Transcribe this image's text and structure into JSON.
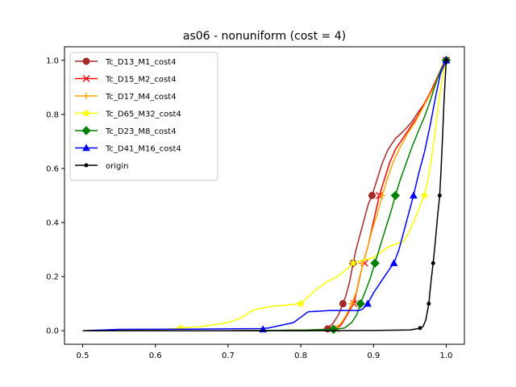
{
  "chart_data": {
    "type": "line",
    "title": "as06 - nonuniform (cost = 4)",
    "xlabel": "",
    "ylabel": "",
    "xlim": [
      0.475,
      1.025
    ],
    "ylim": [
      -0.05,
      1.05
    ],
    "xticks": [
      0.5,
      0.6,
      0.7,
      0.8,
      0.9,
      1.0
    ],
    "xtick_labels": [
      "0.5",
      "0.6",
      "0.7",
      "0.8",
      "0.9",
      "1.0"
    ],
    "yticks": [
      0.0,
      0.2,
      0.4,
      0.6,
      0.8,
      1.0
    ],
    "ytick_labels": [
      "0.0",
      "0.2",
      "0.4",
      "0.6",
      "0.8",
      "1.0"
    ],
    "grid": false,
    "legend_position": "upper-left",
    "series": [
      {
        "name": "Tc_D13_M1_cost4",
        "color": "#a52a2a",
        "marker": "circle",
        "points": [
          [
            0.5,
            0.0
          ],
          [
            0.7,
            0.0
          ],
          [
            0.8,
            0.002
          ],
          [
            0.83,
            0.005
          ],
          [
            0.837,
            0.007
          ],
          [
            0.845,
            0.03
          ],
          [
            0.852,
            0.06
          ],
          [
            0.858,
            0.1
          ],
          [
            0.862,
            0.13
          ],
          [
            0.867,
            0.18
          ],
          [
            0.872,
            0.25
          ],
          [
            0.876,
            0.3
          ],
          [
            0.882,
            0.36
          ],
          [
            0.888,
            0.42
          ],
          [
            0.893,
            0.47
          ],
          [
            0.898,
            0.5
          ],
          [
            0.905,
            0.56
          ],
          [
            0.912,
            0.62
          ],
          [
            0.92,
            0.67
          ],
          [
            0.93,
            0.71
          ],
          [
            0.942,
            0.74
          ],
          [
            0.952,
            0.77
          ],
          [
            0.962,
            0.81
          ],
          [
            0.97,
            0.84
          ],
          [
            0.978,
            0.88
          ],
          [
            0.985,
            0.92
          ],
          [
            0.99,
            0.95
          ],
          [
            0.995,
            0.98
          ],
          [
            1.0,
            1.0
          ]
        ],
        "markers": [
          [
            0.837,
            0.007
          ],
          [
            0.858,
            0.1
          ],
          [
            0.872,
            0.25
          ],
          [
            0.898,
            0.5
          ],
          [
            1.0,
            1.0
          ]
        ]
      },
      {
        "name": "Tc_D15_M2_cost4",
        "color": "#ff0000",
        "marker": "x",
        "points": [
          [
            0.5,
            0.0
          ],
          [
            0.7,
            0.0
          ],
          [
            0.8,
            0.002
          ],
          [
            0.84,
            0.004
          ],
          [
            0.848,
            0.008
          ],
          [
            0.855,
            0.02
          ],
          [
            0.862,
            0.05
          ],
          [
            0.868,
            0.08
          ],
          [
            0.873,
            0.1
          ],
          [
            0.878,
            0.16
          ],
          [
            0.883,
            0.22
          ],
          [
            0.888,
            0.27
          ],
          [
            0.893,
            0.32
          ],
          [
            0.898,
            0.38
          ],
          [
            0.903,
            0.44
          ],
          [
            0.908,
            0.5
          ],
          [
            0.915,
            0.56
          ],
          [
            0.922,
            0.62
          ],
          [
            0.93,
            0.67
          ],
          [
            0.94,
            0.71
          ],
          [
            0.95,
            0.75
          ],
          [
            0.96,
            0.79
          ],
          [
            0.97,
            0.84
          ],
          [
            0.978,
            0.88
          ],
          [
            0.985,
            0.92
          ],
          [
            0.99,
            0.95
          ],
          [
            0.995,
            0.98
          ],
          [
            1.0,
            1.0
          ]
        ],
        "markers": [
          [
            0.848,
            0.008
          ],
          [
            0.873,
            0.1
          ],
          [
            0.888,
            0.25
          ],
          [
            0.908,
            0.5
          ],
          [
            1.0,
            1.0
          ]
        ]
      },
      {
        "name": "Tc_D17_M4_cost4",
        "color": "#ffa500",
        "marker": "plus",
        "points": [
          [
            0.5,
            0.0
          ],
          [
            0.7,
            0.0
          ],
          [
            0.8,
            0.002
          ],
          [
            0.84,
            0.004
          ],
          [
            0.848,
            0.01
          ],
          [
            0.856,
            0.03
          ],
          [
            0.863,
            0.06
          ],
          [
            0.87,
            0.1
          ],
          [
            0.876,
            0.14
          ],
          [
            0.881,
            0.2
          ],
          [
            0.887,
            0.26
          ],
          [
            0.893,
            0.32
          ],
          [
            0.899,
            0.38
          ],
          [
            0.905,
            0.43
          ],
          [
            0.912,
            0.5
          ],
          [
            0.92,
            0.57
          ],
          [
            0.928,
            0.63
          ],
          [
            0.937,
            0.68
          ],
          [
            0.947,
            0.73
          ],
          [
            0.957,
            0.77
          ],
          [
            0.967,
            0.82
          ],
          [
            0.975,
            0.86
          ],
          [
            0.983,
            0.9
          ],
          [
            0.989,
            0.94
          ],
          [
            0.994,
            0.97
          ],
          [
            1.0,
            1.0
          ]
        ],
        "markers": [
          [
            0.848,
            0.01
          ],
          [
            0.87,
            0.1
          ],
          [
            0.883,
            0.25
          ],
          [
            0.912,
            0.5
          ],
          [
            1.0,
            1.0
          ]
        ]
      },
      {
        "name": "Tc_D65_M32_cost4",
        "color": "#ffff00",
        "marker": "star",
        "points": [
          [
            0.5,
            0.0
          ],
          [
            0.6,
            0.003
          ],
          [
            0.635,
            0.01
          ],
          [
            0.66,
            0.015
          ],
          [
            0.7,
            0.03
          ],
          [
            0.72,
            0.05
          ],
          [
            0.73,
            0.07
          ],
          [
            0.74,
            0.08
          ],
          [
            0.76,
            0.09
          ],
          [
            0.8,
            0.1
          ],
          [
            0.82,
            0.15
          ],
          [
            0.835,
            0.18
          ],
          [
            0.85,
            0.2
          ],
          [
            0.86,
            0.22
          ],
          [
            0.872,
            0.25
          ],
          [
            0.885,
            0.26
          ],
          [
            0.9,
            0.27
          ],
          [
            0.91,
            0.29
          ],
          [
            0.92,
            0.31
          ],
          [
            0.93,
            0.32
          ],
          [
            0.942,
            0.33
          ],
          [
            0.95,
            0.37
          ],
          [
            0.958,
            0.42
          ],
          [
            0.965,
            0.47
          ],
          [
            0.97,
            0.5
          ],
          [
            0.975,
            0.56
          ],
          [
            0.98,
            0.64
          ],
          [
            0.985,
            0.74
          ],
          [
            0.99,
            0.85
          ],
          [
            0.995,
            0.94
          ],
          [
            1.0,
            1.0
          ]
        ],
        "markers": [
          [
            0.635,
            0.01
          ],
          [
            0.8,
            0.1
          ],
          [
            0.872,
            0.25
          ],
          [
            0.97,
            0.5
          ],
          [
            1.0,
            1.0
          ]
        ]
      },
      {
        "name": "Tc_D23_M8_cost4",
        "color": "#008000",
        "marker": "diamond",
        "points": [
          [
            0.5,
            0.0
          ],
          [
            0.7,
            0.0
          ],
          [
            0.8,
            0.002
          ],
          [
            0.845,
            0.005
          ],
          [
            0.86,
            0.01
          ],
          [
            0.87,
            0.03
          ],
          [
            0.877,
            0.06
          ],
          [
            0.882,
            0.1
          ],
          [
            0.888,
            0.14
          ],
          [
            0.895,
            0.19
          ],
          [
            0.902,
            0.25
          ],
          [
            0.91,
            0.32
          ],
          [
            0.918,
            0.39
          ],
          [
            0.925,
            0.45
          ],
          [
            0.93,
            0.5
          ],
          [
            0.937,
            0.56
          ],
          [
            0.945,
            0.62
          ],
          [
            0.953,
            0.68
          ],
          [
            0.962,
            0.74
          ],
          [
            0.97,
            0.79
          ],
          [
            0.978,
            0.85
          ],
          [
            0.985,
            0.91
          ],
          [
            0.992,
            0.96
          ],
          [
            1.0,
            1.0
          ]
        ],
        "markers": [
          [
            0.845,
            0.005
          ],
          [
            0.882,
            0.1
          ],
          [
            0.902,
            0.25
          ],
          [
            0.93,
            0.5
          ],
          [
            1.0,
            1.0
          ]
        ]
      },
      {
        "name": "Tc_D41_M16_cost4",
        "color": "#0000ff",
        "marker": "triangle",
        "points": [
          [
            0.5,
            0.0
          ],
          [
            0.55,
            0.005
          ],
          [
            0.65,
            0.006
          ],
          [
            0.7,
            0.007
          ],
          [
            0.745,
            0.008
          ],
          [
            0.755,
            0.01
          ],
          [
            0.79,
            0.03
          ],
          [
            0.8,
            0.05
          ],
          [
            0.81,
            0.07
          ],
          [
            0.84,
            0.075
          ],
          [
            0.88,
            0.075
          ],
          [
            0.885,
            0.08
          ],
          [
            0.892,
            0.1
          ],
          [
            0.9,
            0.14
          ],
          [
            0.91,
            0.18
          ],
          [
            0.92,
            0.22
          ],
          [
            0.928,
            0.25
          ],
          [
            0.935,
            0.3
          ],
          [
            0.942,
            0.37
          ],
          [
            0.948,
            0.43
          ],
          [
            0.955,
            0.5
          ],
          [
            0.962,
            0.58
          ],
          [
            0.97,
            0.66
          ],
          [
            0.978,
            0.76
          ],
          [
            0.985,
            0.86
          ],
          [
            0.992,
            0.95
          ],
          [
            1.0,
            1.0
          ]
        ],
        "markers": [
          [
            0.748,
            0.005
          ],
          [
            0.892,
            0.1
          ],
          [
            0.928,
            0.25
          ],
          [
            0.955,
            0.5
          ],
          [
            1.0,
            1.0
          ]
        ]
      },
      {
        "name": "origin",
        "color": "#000000",
        "marker": "dot",
        "points": [
          [
            0.5,
            0.0
          ],
          [
            0.8,
            0.0
          ],
          [
            0.9,
            0.001
          ],
          [
            0.95,
            0.003
          ],
          [
            0.962,
            0.008
          ],
          [
            0.968,
            0.015
          ],
          [
            0.972,
            0.04
          ],
          [
            0.976,
            0.1
          ],
          [
            0.979,
            0.18
          ],
          [
            0.982,
            0.25
          ],
          [
            0.985,
            0.33
          ],
          [
            0.988,
            0.42
          ],
          [
            0.991,
            0.5
          ],
          [
            0.993,
            0.6
          ],
          [
            0.995,
            0.72
          ],
          [
            0.997,
            0.85
          ],
          [
            0.999,
            0.95
          ],
          [
            1.0,
            1.0
          ]
        ],
        "markers": [
          [
            0.964,
            0.01
          ],
          [
            0.976,
            0.1
          ],
          [
            0.982,
            0.25
          ],
          [
            0.991,
            0.5
          ],
          [
            1.0,
            1.0
          ]
        ]
      }
    ]
  }
}
